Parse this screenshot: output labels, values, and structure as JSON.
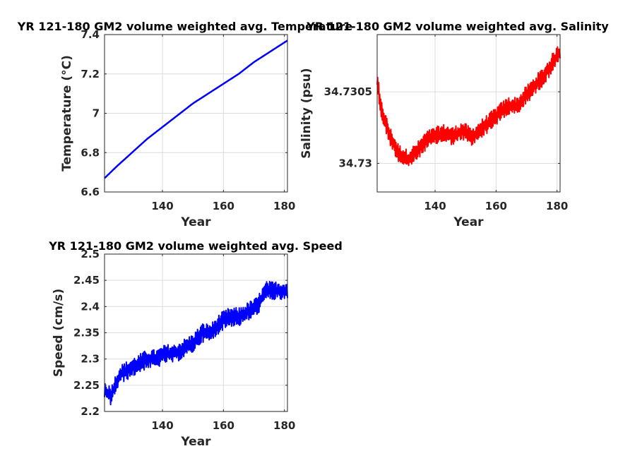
{
  "chart_data": [
    {
      "type": "line",
      "title": "YR 121-180 GM2 volume weighted avg. Temperature",
      "xlabel": "Year",
      "ylabel": "Temperature (°C)",
      "xlim": [
        121,
        181
      ],
      "ylim": [
        6.6,
        7.4
      ],
      "xticks": [
        "140",
        "160",
        "180"
      ],
      "yticks": [
        "6.6",
        "6.8",
        "7",
        "7.2",
        "7.4"
      ],
      "grid": true,
      "color": "#0000ff",
      "series": [
        {
          "x": [
            121,
            125,
            130,
            135,
            140,
            145,
            150,
            155,
            160,
            165,
            170,
            175,
            181
          ],
          "y": [
            6.67,
            6.73,
            6.8,
            6.87,
            6.93,
            6.99,
            7.05,
            7.1,
            7.15,
            7.2,
            7.26,
            7.31,
            7.37
          ]
        }
      ]
    },
    {
      "type": "line",
      "title": "YR 121-180 GM2 volume weighted avg. Salinity",
      "xlabel": "Year",
      "ylabel": "Salinity (psu)",
      "xlim": [
        121,
        181
      ],
      "ylim": [
        34.7298,
        34.7309
      ],
      "xticks": [
        "140",
        "160",
        "180"
      ],
      "yticks": [
        "34.73",
        "34.7305"
      ],
      "grid": true,
      "color": "#ff0000",
      "series": [
        {
          "x": [
            121,
            122,
            125,
            128,
            131,
            134,
            137,
            140,
            143,
            146,
            149,
            152,
            155,
            158,
            161,
            164,
            167,
            170,
            173,
            176,
            179,
            181
          ],
          "y": [
            34.7306,
            34.7304,
            34.7302,
            34.73007,
            34.73003,
            34.73008,
            34.73016,
            34.73019,
            34.73021,
            34.73019,
            34.73023,
            34.73018,
            34.73024,
            34.73029,
            34.73035,
            34.7304,
            34.7304,
            34.73048,
            34.73055,
            34.73062,
            34.73072,
            34.73078
          ]
        }
      ]
    },
    {
      "type": "line",
      "title": "YR 121-180 GM2 volume weighted avg. Speed",
      "xlabel": "Year",
      "ylabel": "Speed (cm/s)",
      "xlim": [
        121,
        181
      ],
      "ylim": [
        2.2,
        2.5
      ],
      "xticks": [
        "140",
        "160",
        "180"
      ],
      "yticks": [
        "2.2",
        "2.25",
        "2.3",
        "2.35",
        "2.4",
        "2.45",
        "2.5"
      ],
      "grid": true,
      "color": "#0000ff",
      "series": [
        {
          "x": [
            121,
            123,
            126,
            129,
            132,
            135,
            138,
            141,
            144,
            147,
            150,
            153,
            156,
            159,
            162,
            165,
            168,
            171,
            174,
            177,
            181
          ],
          "y": [
            2.24,
            2.23,
            2.27,
            2.28,
            2.29,
            2.3,
            2.3,
            2.31,
            2.31,
            2.32,
            2.33,
            2.35,
            2.35,
            2.37,
            2.38,
            2.38,
            2.39,
            2.4,
            2.43,
            2.43,
            2.43
          ]
        }
      ]
    }
  ]
}
